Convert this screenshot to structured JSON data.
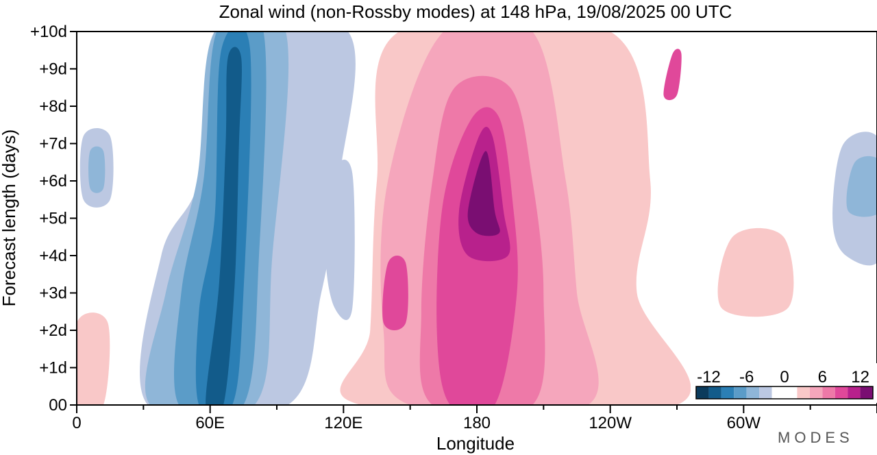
{
  "chart_data": {
    "type": "heatmap",
    "title": "Zonal wind (non-Rossby modes) at 148 hPa,  19/08/2025  00 UTC",
    "xlabel": "Longitude",
    "ylabel": "Forecast length (days)",
    "x_ticks": [
      "0",
      "60E",
      "120E",
      "180",
      "120W",
      "60W"
    ],
    "x_tick_values": [
      0,
      60,
      120,
      180,
      240,
      300
    ],
    "xlim": [
      0,
      360
    ],
    "y_ticks": [
      "00",
      "+1d",
      "+2d",
      "+3d",
      "+4d",
      "+5d",
      "+6d",
      "+7d",
      "+8d",
      "+9d",
      "+10d"
    ],
    "y_tick_values": [
      0,
      1,
      2,
      3,
      4,
      5,
      6,
      7,
      8,
      9,
      10
    ],
    "ylim": [
      0,
      10
    ],
    "colorbar": {
      "placement": "bottom-right",
      "labels": [
        "-12",
        "-6",
        "0",
        "6",
        "12"
      ],
      "label_values": [
        -12,
        -6,
        0,
        6,
        12
      ],
      "range": [
        -14,
        14
      ],
      "levels": [
        -14,
        -12,
        -10,
        -8,
        -6,
        -4,
        -2,
        2,
        4,
        6,
        8,
        10,
        12,
        14
      ],
      "colors": [
        "#0b3b5c",
        "#125b8a",
        "#2b7fb5",
        "#5b9cc8",
        "#8fb6d8",
        "#bcc8e2",
        "#ffffff",
        "#f9c8c8",
        "#f5a6bc",
        "#ee79a8",
        "#e0489a",
        "#b8218c",
        "#7a0e72"
      ]
    },
    "bands": [
      {
        "value": -2,
        "lon": [
          [
            60,
            10
          ],
          [
            45,
            5
          ],
          [
            30,
            10
          ],
          [
            20,
            10
          ],
          [
            2,
            1.5
          ],
          [
            -5,
            10
          ]
        ]
      },
      {
        "value": -2,
        "lon": [
          [
            125,
            10
          ],
          [
            130,
            5
          ],
          [
            128,
            2
          ],
          [
            122,
            0
          ],
          [
            108,
            0
          ],
          [
            112,
            5
          ],
          [
            108,
            10
          ]
        ]
      },
      {
        "value": -2,
        "lon": [
          [
            330,
            10
          ],
          [
            325,
            5
          ],
          [
            330,
            2
          ],
          [
            345,
            1
          ],
          [
            362,
            0
          ],
          [
            362,
            10
          ]
        ]
      },
      {
        "value": -4,
        "lon": [
          [
            65,
            10
          ],
          [
            55,
            6
          ],
          [
            38,
            4
          ],
          [
            32,
            0
          ],
          [
            95,
            0
          ],
          [
            110,
            3
          ],
          [
            118,
            6
          ],
          [
            122,
            10
          ]
        ]
      },
      {
        "value": -6,
        "lon": [
          [
            62,
            10
          ],
          [
            54,
            6
          ],
          [
            40,
            3
          ],
          [
            33,
            0
          ],
          [
            80,
            0
          ],
          [
            88,
            4
          ],
          [
            94,
            10
          ]
        ]
      },
      {
        "value": -8,
        "lon": [
          [
            63,
            10
          ],
          [
            57,
            6
          ],
          [
            47,
            3
          ],
          [
            46,
            0
          ],
          [
            75,
            0
          ],
          [
            82,
            4
          ],
          [
            84,
            10
          ]
        ]
      },
      {
        "value": -10,
        "lon": [
          [
            65,
            9.5
          ],
          [
            62,
            5
          ],
          [
            55,
            2.5
          ],
          [
            55,
            0
          ],
          [
            70,
            0
          ],
          [
            75,
            3
          ],
          [
            78,
            9.5
          ]
        ]
      },
      {
        "value": -12,
        "lon": [
          [
            68,
            9.3
          ],
          [
            67,
            7
          ],
          [
            64,
            3.2
          ],
          [
            58,
            0
          ],
          [
            66,
            0
          ],
          [
            71,
            3.2
          ],
          [
            73,
            7
          ],
          [
            74,
            9.3
          ]
        ]
      },
      {
        "value": -4,
        "lon": [
          [
            3,
            7.2
          ],
          [
            3,
            5.5
          ],
          [
            15,
            5.5
          ],
          [
            15,
            7.2
          ]
        ]
      },
      {
        "value": -6,
        "lon": [
          [
            6,
            6.8
          ],
          [
            6,
            5.8
          ],
          [
            12,
            5.8
          ],
          [
            12,
            6.8
          ]
        ]
      },
      {
        "value": -4,
        "lon": [
          [
            115,
            6.2
          ],
          [
            112,
            4
          ],
          [
            116,
            2.6
          ],
          [
            124,
            2.6
          ],
          [
            124,
            6.2
          ]
        ]
      },
      {
        "value": -4,
        "lon": [
          [
            345,
            7
          ],
          [
            340,
            5
          ],
          [
            346,
            4
          ],
          [
            362,
            4
          ],
          [
            362,
            7
          ]
        ]
      },
      {
        "value": -6,
        "lon": [
          [
            350,
            6.5
          ],
          [
            347,
            5.2
          ],
          [
            362,
            5.2
          ],
          [
            362,
            6.5
          ]
        ]
      },
      {
        "value": 2,
        "lon": [
          [
            145,
            10
          ],
          [
            135,
            6
          ],
          [
            132,
            2
          ],
          [
            128,
            0
          ],
          [
            270,
            0
          ],
          [
            252,
            3
          ],
          [
            258,
            6
          ],
          [
            240,
            10
          ]
        ]
      },
      {
        "value": 2,
        "lon": [
          [
            0,
            2.2
          ],
          [
            0,
            0
          ],
          [
            12,
            0
          ],
          [
            14,
            2.2
          ]
        ]
      },
      {
        "value": 2,
        "lon": [
          [
            295,
            4.5
          ],
          [
            290,
            2.6
          ],
          [
            320,
            2.6
          ],
          [
            318,
            4.5
          ]
        ]
      },
      {
        "value": 4,
        "lon": [
          [
            165,
            10
          ],
          [
            140,
            6
          ],
          [
            138,
            2
          ],
          [
            150,
            0
          ],
          [
            230,
            0
          ],
          [
            225,
            3
          ],
          [
            220,
            6
          ],
          [
            205,
            10
          ]
        ]
      },
      {
        "value": 6,
        "lon": [
          [
            170,
            8.5
          ],
          [
            160,
            6
          ],
          [
            155,
            2.5
          ],
          [
            160,
            0
          ],
          [
            205,
            0
          ],
          [
            210,
            3
          ],
          [
            205,
            6
          ],
          [
            195,
            8.5
          ]
        ]
      },
      {
        "value": 8,
        "lon": [
          [
            178,
            7.7
          ],
          [
            165,
            5.5
          ],
          [
            162,
            2
          ],
          [
            168,
            0
          ],
          [
            188,
            0
          ],
          [
            198,
            3
          ],
          [
            196,
            5.5
          ],
          [
            190,
            7.7
          ]
        ]
      },
      {
        "value": 10,
        "lon": [
          [
            181,
            7.2
          ],
          [
            172,
            5.2
          ],
          [
            176,
            4
          ],
          [
            194,
            4
          ],
          [
            192,
            5.2
          ],
          [
            187,
            7.2
          ]
        ]
      },
      {
        "value": 12,
        "lon": [
          [
            184,
            6.8
          ],
          [
            176,
            5.2
          ],
          [
            180,
            4.6
          ],
          [
            190,
            4.6
          ],
          [
            188,
            5.2
          ]
        ]
      },
      {
        "value": 8,
        "lon": [
          [
            140,
            3.8
          ],
          [
            138,
            2.2
          ],
          [
            148,
            2.2
          ],
          [
            148,
            3.8
          ]
        ]
      },
      {
        "value": 8,
        "lon": [
          [
            268,
            9.4
          ],
          [
            264,
            8.3
          ],
          [
            270,
            8.3
          ],
          [
            272,
            9.4
          ]
        ]
      }
    ],
    "brand": "MODES"
  }
}
